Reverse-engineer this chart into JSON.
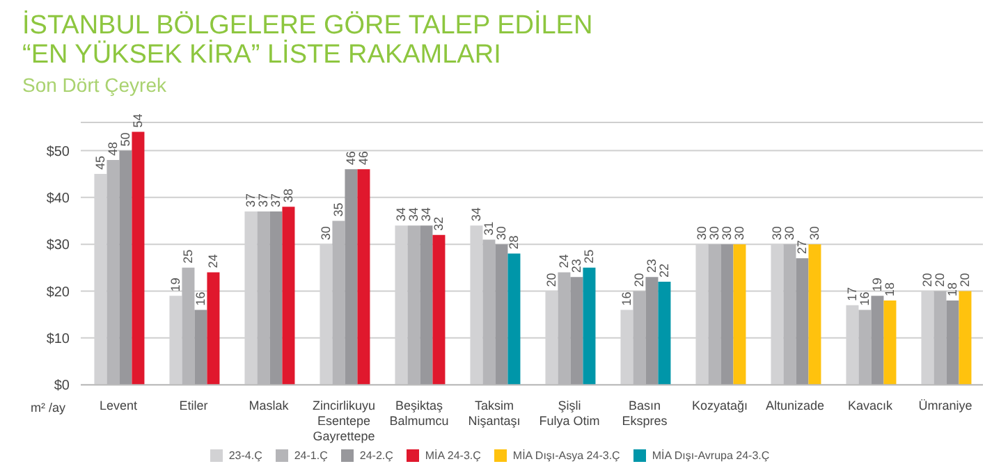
{
  "chart_data": {
    "type": "bar",
    "title": "İSTANBUL BÖLGELERE GÖRE TALEP EDİLEN\n“EN YÜKSEK KİRA” LİSTE RAKAMLARI",
    "subtitle": "Son Dört Çeyrek",
    "annotations": [
      "m² /ay"
    ],
    "categories": [
      "Levent",
      "Etiler",
      "Maslak",
      "Zincirlikuyu\nEsentepe\nGayrettepe",
      "Beşiktaş\nBalmumcu",
      "Taksim\nNişantaşı",
      "Şişli\nFulya Otim",
      "Basın\nEkspres",
      "Kozyatağı",
      "Altunizade",
      "Kavacık",
      "Ümraniye"
    ],
    "series": [
      {
        "name": "23-4.Ç",
        "color": "#d2d2d4",
        "values": [
          45,
          19,
          37,
          30,
          34,
          34,
          20,
          16,
          30,
          30,
          17,
          20
        ]
      },
      {
        "name": "24-1.Ç",
        "color": "#b5b5b8",
        "values": [
          48,
          25,
          37,
          35,
          34,
          31,
          24,
          20,
          30,
          30,
          16,
          20
        ]
      },
      {
        "name": "24-2.Ç",
        "color": "#98989c",
        "values": [
          50,
          16,
          37,
          46,
          34,
          30,
          23,
          23,
          30,
          27,
          19,
          18
        ]
      },
      {
        "name": "MİA 24-3.Ç",
        "color": "#e0182d",
        "values": [
          54,
          24,
          38,
          46,
          32,
          null,
          null,
          null,
          null,
          null,
          null,
          null
        ]
      },
      {
        "name": "MİA Dışı-Asya 24-3.Ç",
        "color": "#ffc20e",
        "values": [
          null,
          null,
          null,
          null,
          null,
          null,
          null,
          null,
          30,
          30,
          18,
          20
        ]
      },
      {
        "name": "MİA Dışı-Avrupa 24-3.Ç",
        "color": "#0096a9",
        "values": [
          null,
          null,
          null,
          null,
          null,
          28,
          25,
          22,
          null,
          null,
          null,
          null
        ]
      }
    ],
    "ylim": [
      0,
      56
    ],
    "yticks": [
      {
        "value": 0,
        "label": "$0"
      },
      {
        "value": 10,
        "label": "$10"
      },
      {
        "value": 20,
        "label": "$20"
      },
      {
        "value": 30,
        "label": "$30"
      },
      {
        "value": 40,
        "label": "$40"
      },
      {
        "value": 50,
        "label": "$50"
      }
    ],
    "grid": "y",
    "legend": "bottom",
    "data_labels": true
  }
}
